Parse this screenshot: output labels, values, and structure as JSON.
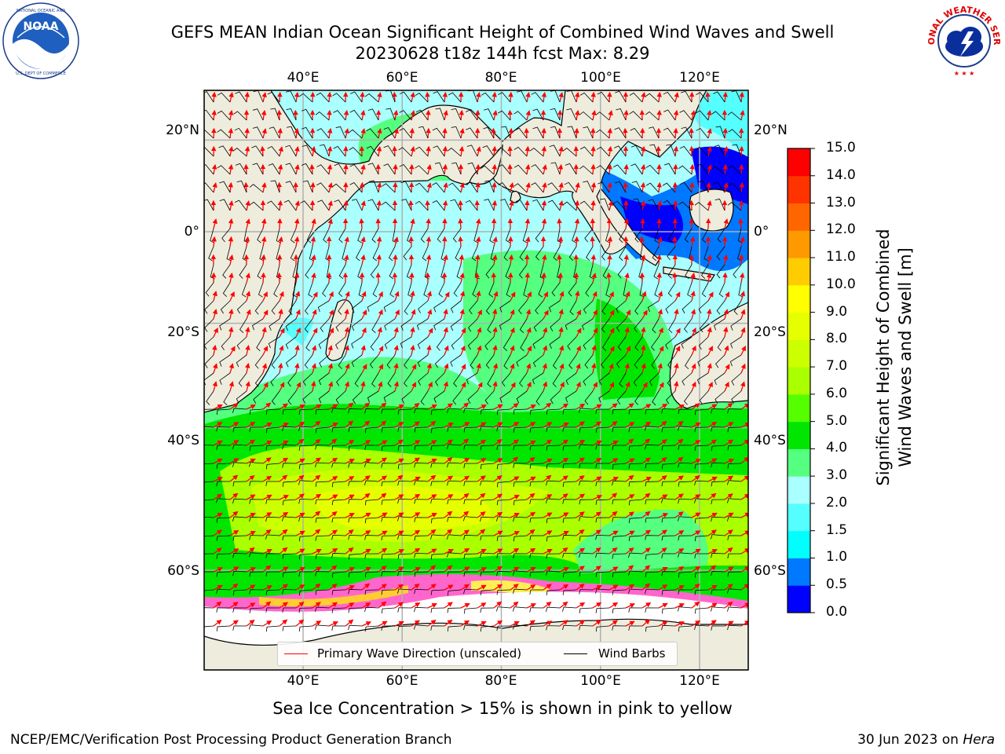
{
  "title": {
    "line1": "GEFS MEAN Indian Ocean Significant Height of Combined Wind Waves and Swell",
    "line2": "20230628 t18z 144h fcst   Max: 8.29"
  },
  "logos": {
    "noaa_text": "NOAA",
    "noaa_ring_text": "NATIONAL OCEANIC AND ATMOSPHERIC ADMINISTRATION · U.S. DEPARTMENT OF COMMERCE",
    "nws_ring_text": "NATIONAL WEATHER SERVICE"
  },
  "map": {
    "lon_labels": [
      "40°E",
      "60°E",
      "80°E",
      "100°E",
      "120°E"
    ],
    "lon_values": [
      40,
      60,
      80,
      100,
      120
    ],
    "lat_labels": [
      "20°N",
      "0°",
      "20°S",
      "40°S",
      "60°S"
    ],
    "lat_values": [
      20,
      0,
      -20,
      -40,
      -60
    ],
    "extent": {
      "lon_min": 20,
      "lon_max": 130,
      "lat_min": -70,
      "lat_max": 28
    },
    "colors": {
      "land": "#eeecdc",
      "ice_free_ocean_white": "#ffffff",
      "grid": "#b0b0b0",
      "wave_arrow": "#ff0000",
      "wind_barb": "#000000"
    }
  },
  "colorbar": {
    "label_line1": "Significant Height of Combined",
    "label_line2": "Wind Waves and Swell [m]",
    "ticks": [
      "0.0",
      "0.5",
      "1.0",
      "1.5",
      "2.0",
      "3.0",
      "4.0",
      "5.0",
      "6.0",
      "7.0",
      "8.0",
      "9.0",
      "10.0",
      "11.0",
      "12.0",
      "13.0",
      "14.0",
      "15.0"
    ],
    "colors": [
      "#0000ff",
      "#0078ff",
      "#00ffff",
      "#55ffff",
      "#aaffff",
      "#55ff80",
      "#00e600",
      "#55ff00",
      "#aaff00",
      "#ccff00",
      "#e6ff00",
      "#ffff00",
      "#ffcc00",
      "#ff9900",
      "#ff6600",
      "#ff3300",
      "#ff0000"
    ]
  },
  "legend": {
    "wave_label": "Primary Wave Direction (unscaled)",
    "wind_label": "Wind Barbs"
  },
  "note": "Sea Ice Concentration > 15% is shown in pink to yellow",
  "footer": {
    "left": "NCEP/EMC/Verification Post Processing Product Generation Branch",
    "right_prefix": "30 Jun 2023 on ",
    "right_host": "Hera"
  }
}
